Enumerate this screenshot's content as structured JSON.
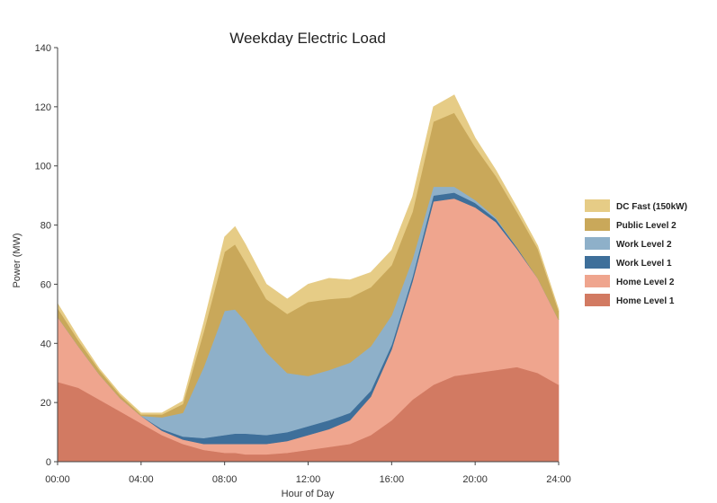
{
  "chart_data": {
    "type": "area",
    "stacked": true,
    "title": "Weekday Electric Load",
    "xlabel": "Hour of Day",
    "ylabel": "Power (MW)",
    "xlim": [
      0,
      24
    ],
    "ylim": [
      0,
      140
    ],
    "x_ticks": [
      "00:00",
      "04:00",
      "08:00",
      "12:00",
      "16:00",
      "20:00",
      "24:00"
    ],
    "y_ticks": [
      "0",
      "20",
      "40",
      "60",
      "80",
      "100",
      "120",
      "140"
    ],
    "legend_position": "right",
    "grid": false,
    "x": [
      0,
      1,
      2,
      3,
      4,
      5,
      6,
      7,
      8,
      8.5,
      9,
      10,
      11,
      12,
      13,
      14,
      15,
      16,
      17,
      18,
      19,
      20,
      21,
      22,
      23,
      24
    ],
    "series": [
      {
        "name": "Home Level 1",
        "color": "#d27a62",
        "values": [
          27,
          25,
          21,
          17,
          13,
          9,
          6,
          4,
          3,
          3,
          2.5,
          2.5,
          3,
          4,
          5,
          6,
          9,
          14,
          21,
          26,
          29,
          30,
          31,
          32,
          30,
          26
        ]
      },
      {
        "name": "Home Level 2",
        "color": "#efa58e",
        "values": [
          22,
          14,
          8.5,
          4.5,
          2.5,
          1.5,
          1.5,
          2,
          3,
          3,
          3.5,
          3.5,
          4,
          5,
          6,
          8,
          13,
          24,
          40,
          62,
          60,
          56,
          50,
          40,
          32,
          22
        ]
      },
      {
        "name": "Work Level 1",
        "color": "#3e6f9a",
        "values": [
          0,
          0,
          0,
          0,
          0,
          0.5,
          1,
          2,
          3,
          3.5,
          3.5,
          3,
          3,
          3,
          3,
          2.5,
          2,
          1.5,
          1.5,
          2,
          2,
          1.5,
          1,
          0.5,
          0,
          0
        ]
      },
      {
        "name": "Work Level 2",
        "color": "#8eb0c9",
        "values": [
          0,
          0,
          0,
          0,
          0,
          4,
          8,
          24,
          42,
          42,
          38,
          28,
          20,
          17,
          17,
          17,
          15,
          10,
          6,
          3,
          2,
          1,
          0.5,
          0,
          0,
          0
        ]
      },
      {
        "name": "Public Level 2",
        "color": "#c9a85a",
        "values": [
          3,
          2,
          1.5,
          1,
          0.5,
          1,
          3,
          12,
          20,
          22,
          20,
          18,
          20,
          25,
          24,
          22,
          20,
          17,
          16,
          22,
          25,
          18,
          14,
          12,
          10,
          3
        ]
      },
      {
        "name": "DC Fast (150kW)",
        "color": "#e6cc86",
        "values": [
          1.5,
          1,
          0.5,
          0.5,
          0.5,
          0.5,
          1,
          3,
          5,
          6,
          6,
          5,
          5,
          6,
          7,
          6,
          5,
          5,
          5,
          5,
          6,
          3,
          2,
          1.5,
          1,
          0.5
        ]
      }
    ]
  }
}
